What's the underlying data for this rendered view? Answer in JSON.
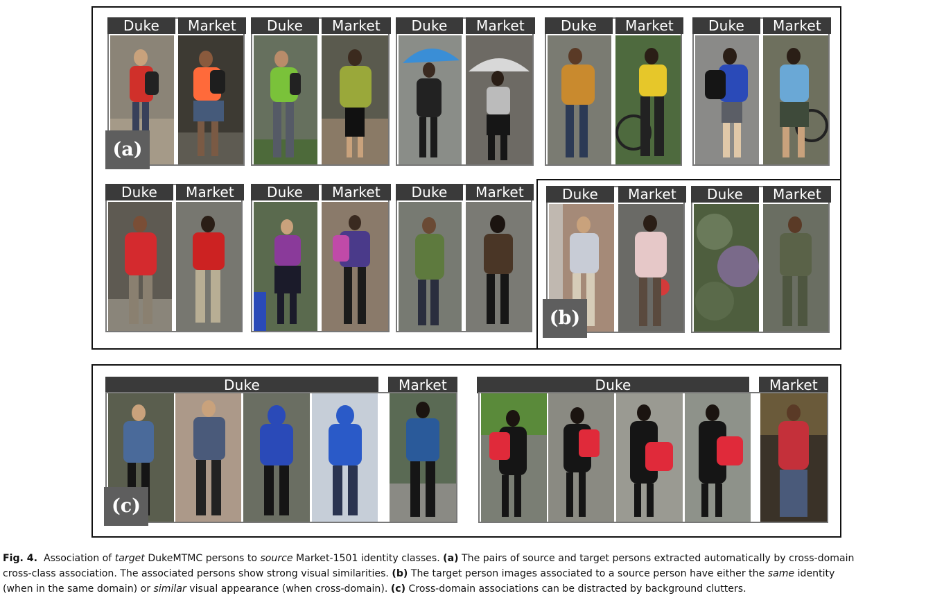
{
  "figure": {
    "labels": {
      "a": "(a)",
      "b": "(b)",
      "c": "(c)"
    },
    "headers": {
      "duke": "Duke",
      "market": "Market"
    },
    "caption": {
      "fig_label": "Fig. 4.",
      "t1": "Association of ",
      "t1_target": "target",
      "t2": " DukeMTMC persons to ",
      "t2_source": "source",
      "t3": " Market-1501 identity classes. ",
      "a_tag": "(a)",
      "t4": " The pairs of source and target persons extracted automatically by cross-domain",
      "t5": "cross-class association. The associated persons show strong visual similarities. ",
      "b_tag": "(b)",
      "t6": " The target person images associated to a source person have either the ",
      "t6_same": "same",
      "t6_end": " identity",
      "t7": "(when in the same domain) or ",
      "t7_similar": "similar",
      "t8": " visual appearance (when cross-domain). ",
      "c_tag": "(c)",
      "t9": " Cross-domain associations can be distracted by background clutters."
    }
  },
  "colors": {
    "header_bg": "#3a3a3a",
    "pair_border": "#777777",
    "frame_border": "#111111",
    "label_bg": "#5e5e5e"
  }
}
